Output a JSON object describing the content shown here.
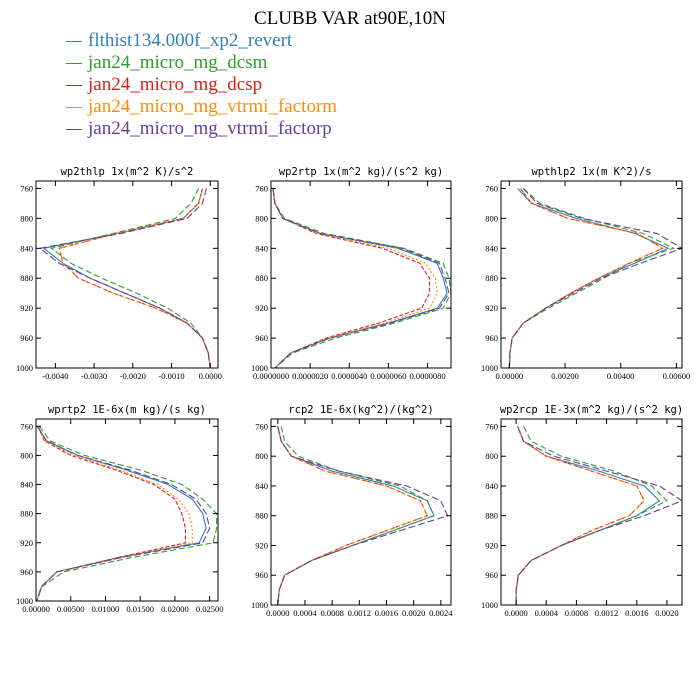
{
  "title": "CLUBB VAR at90E,10N",
  "legend": [
    {
      "name": "flthist134.000f_xp2_revert",
      "color": "#2f7fb8"
    },
    {
      "name": "jan24_micro_mg_dcsm",
      "color": "#2ca02c"
    },
    {
      "name": "jan24_micro_mg_dcsp",
      "color": "#e31a1c"
    },
    {
      "name": "jan24_micro_mg_vtrmi_factorm",
      "color": "#ff8c00"
    },
    {
      "name": "jan24_micro_mg_vtrmi_factorp",
      "color": "#6a3d9a"
    }
  ],
  "chart_data": [
    {
      "type": "line",
      "title": "wp2thlp  1x(m^2 K)/s^2",
      "ylim": [
        1000,
        750
      ],
      "yticks": [
        760,
        800,
        840,
        880,
        920,
        960,
        1000
      ],
      "xlim": [
        -0.0045,
        0.0002
      ],
      "xticks": [
        -0.004,
        -0.003,
        -0.002,
        -0.001,
        0.0
      ],
      "xtick_labels": [
        "-0.0040",
        "-0.0030",
        "-0.0020",
        "-0.0010",
        "0.0000"
      ],
      "y": [
        760,
        780,
        800,
        820,
        840,
        860,
        880,
        900,
        920,
        940,
        960,
        980,
        1000
      ],
      "series": [
        {
          "name": "flthist134.000f_xp2_revert",
          "values": [
            -0.0002,
            -0.0003,
            -0.0007,
            -0.0024,
            -0.0043,
            -0.0038,
            -0.0031,
            -0.0022,
            -0.0013,
            -0.0006,
            -0.0002,
            -5e-05,
            0.0
          ]
        },
        {
          "name": "jan24_micro_mg_dcsm",
          "values": [
            -0.0003,
            -0.0005,
            -0.0009,
            -0.0025,
            -0.0041,
            -0.0036,
            -0.0028,
            -0.0019,
            -0.0011,
            -0.0005,
            -0.0002,
            -5e-05,
            0.0
          ]
        },
        {
          "name": "jan24_micro_mg_dcsp",
          "values": [
            -0.0002,
            -0.0003,
            -0.0007,
            -0.0024,
            -0.0039,
            -0.0038,
            -0.0034,
            -0.0025,
            -0.0014,
            -0.0006,
            -0.0002,
            -5e-05,
            0.0
          ]
        },
        {
          "name": "jan24_micro_mg_vtrmi_factorm",
          "values": [
            -0.0002,
            -0.0003,
            -0.0007,
            -0.0024,
            -0.0039,
            -0.0038,
            -0.0034,
            -0.0025,
            -0.0014,
            -0.0006,
            -0.0002,
            -5e-05,
            0.0
          ]
        },
        {
          "name": "jan24_micro_mg_vtrmi_factorp",
          "values": [
            -0.0001,
            -0.0002,
            -0.0006,
            -0.0023,
            -0.0044,
            -0.0039,
            -0.0031,
            -0.0022,
            -0.0013,
            -0.0006,
            -0.0002,
            -5e-05,
            0.0
          ]
        }
      ]
    },
    {
      "type": "line",
      "title": "wp2rtp  1x(m^2 kg)/(s^2 kg)",
      "ylim": [
        1000,
        750
      ],
      "yticks": [
        760,
        800,
        840,
        880,
        920,
        960,
        1000
      ],
      "xlim": [
        0.0,
        9.2e-06
      ],
      "xticks": [
        0.0,
        2e-06,
        4e-06,
        6e-06,
        8e-06
      ],
      "xtick_labels": [
        "0.0000000",
        "0.0000020",
        "0.0000040",
        "0.0000060",
        "0.0000080"
      ],
      "y": [
        760,
        780,
        800,
        820,
        840,
        860,
        880,
        900,
        920,
        940,
        960,
        980,
        1000
      ],
      "series": [
        {
          "name": "flthist134.000f_xp2_revert",
          "values": [
            1e-07,
            2e-07,
            6e-07,
            2.5e-06,
            6.5e-06,
            8.5e-06,
            8.8e-06,
            9e-06,
            8.5e-06,
            6e-06,
            3e-06,
            1e-06,
            2e-07
          ]
        },
        {
          "name": "jan24_micro_mg_dcsm",
          "values": [
            1e-07,
            2e-07,
            7e-07,
            2.7e-06,
            6.8e-06,
            8.8e-06,
            9.1e-06,
            9.2e-06,
            8.8e-06,
            6.3e-06,
            3.3e-06,
            1.1e-06,
            2e-07
          ]
        },
        {
          "name": "jan24_micro_mg_dcsp",
          "values": [
            1e-07,
            2e-07,
            6e-07,
            2.3e-06,
            5.7e-06,
            7.6e-06,
            8.1e-06,
            8.1e-06,
            7.7e-06,
            5.5e-06,
            2.8e-06,
            1e-06,
            2e-07
          ]
        },
        {
          "name": "jan24_micro_mg_vtrmi_factorm",
          "values": [
            1e-07,
            2e-07,
            6e-07,
            2.4e-06,
            6e-06,
            7.9e-06,
            8.4e-06,
            8.5e-06,
            8.1e-06,
            5.8e-06,
            2.9e-06,
            1e-06,
            2e-07
          ]
        },
        {
          "name": "jan24_micro_mg_vtrmi_factorp",
          "values": [
            1e-07,
            2e-07,
            6e-07,
            2.5e-06,
            6.7e-06,
            8.6e-06,
            8.9e-06,
            9.1e-06,
            8.6e-06,
            6.1e-06,
            3e-06,
            1e-06,
            2e-07
          ]
        }
      ]
    },
    {
      "type": "line",
      "title": "wpthlp2  1x(m K^2)/s",
      "ylim": [
        1000,
        750
      ],
      "yticks": [
        760,
        800,
        840,
        880,
        920,
        960,
        1000
      ],
      "xlim": [
        -0.0003,
        0.0062
      ],
      "xticks": [
        0.0,
        0.002,
        0.004,
        0.006
      ],
      "xtick_labels": [
        "0.00000",
        "0.00200",
        "0.00400",
        "0.00600"
      ],
      "y": [
        760,
        780,
        800,
        820,
        840,
        860,
        880,
        900,
        920,
        940,
        960,
        980,
        1000
      ],
      "series": [
        {
          "name": "flthist134.000f_xp2_revert",
          "values": [
            0.0003,
            0.0008,
            0.0024,
            0.0045,
            0.0057,
            0.0045,
            0.0032,
            0.0022,
            0.0013,
            0.0005,
            0.0001,
            2e-05,
            0.0
          ]
        },
        {
          "name": "jan24_micro_mg_dcsm",
          "values": [
            0.0005,
            0.0011,
            0.0027,
            0.0048,
            0.0059,
            0.0043,
            0.0034,
            0.0024,
            0.0014,
            0.0005,
            0.0001,
            2e-05,
            0.0
          ]
        },
        {
          "name": "jan24_micro_mg_dcsp",
          "values": [
            0.0004,
            0.0008,
            0.0021,
            0.0046,
            0.0055,
            0.0043,
            0.0032,
            0.0022,
            0.0013,
            0.0005,
            0.0001,
            2e-05,
            0.0
          ]
        },
        {
          "name": "jan24_micro_mg_vtrmi_factorm",
          "values": [
            0.0004,
            0.0008,
            0.0021,
            0.0046,
            0.0055,
            0.0043,
            0.0032,
            0.0022,
            0.0013,
            0.0005,
            0.0001,
            2e-05,
            0.0
          ]
        },
        {
          "name": "jan24_micro_mg_vtrmi_factorp",
          "values": [
            0.0005,
            0.001,
            0.0026,
            0.0053,
            0.0062,
            0.0047,
            0.0033,
            0.0023,
            0.0013,
            0.0005,
            0.0001,
            2e-05,
            0.0
          ]
        }
      ]
    },
    {
      "type": "line",
      "title": "wprtp2  1E-6x(m kg)/(s kg)",
      "ylim": [
        1000,
        750
      ],
      "yticks": [
        760,
        800,
        840,
        880,
        920,
        960,
        1000
      ],
      "xlim": [
        0.0,
        0.0262
      ],
      "xticks": [
        0.0,
        0.005,
        0.01,
        0.015,
        0.02,
        0.025
      ],
      "xtick_labels": [
        "0.00000",
        "0.00500",
        "0.01000",
        "0.01500",
        "0.02000",
        "0.02500"
      ],
      "y": [
        760,
        780,
        800,
        820,
        840,
        860,
        880,
        900,
        920,
        940,
        960,
        980,
        1000
      ],
      "series": [
        {
          "name": "flthist134.000f_xp2_revert",
          "values": [
            0.0002,
            0.0015,
            0.006,
            0.013,
            0.019,
            0.0225,
            0.024,
            0.0245,
            0.0235,
            0.012,
            0.003,
            0.0008,
            0.0001
          ]
        },
        {
          "name": "jan24_micro_mg_dcsm",
          "values": [
            0.0005,
            0.002,
            0.007,
            0.015,
            0.021,
            0.024,
            0.026,
            0.026,
            0.0255,
            0.014,
            0.004,
            0.0009,
            0.0001
          ]
        },
        {
          "name": "jan24_micro_mg_dcsp",
          "values": [
            0.0003,
            0.0012,
            0.005,
            0.0115,
            0.017,
            0.02,
            0.021,
            0.0215,
            0.0215,
            0.012,
            0.003,
            0.0008,
            0.0001
          ]
        },
        {
          "name": "jan24_micro_mg_vtrmi_factorm",
          "values": [
            0.0003,
            0.0013,
            0.0055,
            0.012,
            0.0175,
            0.0205,
            0.022,
            0.0225,
            0.0225,
            0.0125,
            0.003,
            0.0008,
            0.0001
          ]
        },
        {
          "name": "jan24_micro_mg_vtrmi_factorp",
          "values": [
            0.0002,
            0.0015,
            0.006,
            0.0135,
            0.0195,
            0.023,
            0.0245,
            0.025,
            0.024,
            0.0125,
            0.003,
            0.0008,
            0.0001
          ]
        }
      ]
    },
    {
      "type": "line",
      "title": "rcp2  1E-6x(kg^2)/(kg^2)",
      "ylim": [
        1000,
        750
      ],
      "yticks": [
        760,
        800,
        840,
        880,
        920,
        960,
        1000
      ],
      "xlim": [
        -0.0001,
        0.00255
      ],
      "xticks": [
        0.0,
        0.0004,
        0.0008,
        0.0012,
        0.0016,
        0.002,
        0.0024
      ],
      "xtick_labels": [
        "0.0000",
        "0.0004",
        "0.0008",
        "0.0012",
        "0.0016",
        "0.0020",
        "0.0024"
      ],
      "y": [
        760,
        780,
        800,
        820,
        840,
        860,
        880,
        900,
        920,
        940,
        960,
        980,
        1000
      ],
      "series": [
        {
          "name": "flthist134.000f_xp2_revert",
          "values": [
            0.0,
            5e-05,
            0.0002,
            0.0008,
            0.0017,
            0.0022,
            0.0023,
            0.0017,
            0.0011,
            0.0005,
            0.0001,
            2e-05,
            0.0
          ]
        },
        {
          "name": "jan24_micro_mg_dcsm",
          "values": [
            5e-05,
            0.0001,
            0.0003,
            0.0009,
            0.0018,
            0.0022,
            0.0023,
            0.0017,
            0.0011,
            0.0005,
            0.0001,
            2e-05,
            0.0
          ]
        },
        {
          "name": "jan24_micro_mg_dcsp",
          "values": [
            0.0,
            5e-05,
            0.0002,
            0.0007,
            0.0016,
            0.0021,
            0.0022,
            0.0016,
            0.001,
            0.0005,
            0.0001,
            2e-05,
            0.0
          ]
        },
        {
          "name": "jan24_micro_mg_vtrmi_factorm",
          "values": [
            0.0,
            5e-05,
            0.0002,
            0.0007,
            0.0016,
            0.0021,
            0.0022,
            0.0016,
            0.001,
            0.0005,
            0.0001,
            2e-05,
            0.0
          ]
        },
        {
          "name": "jan24_micro_mg_vtrmi_factorp",
          "values": [
            0.0,
            5e-05,
            0.0002,
            0.0009,
            0.0019,
            0.0024,
            0.0025,
            0.0018,
            0.0011,
            0.0005,
            0.0001,
            2e-05,
            0.0
          ]
        }
      ]
    },
    {
      "type": "line",
      "title": "wp2rcp  1E-3x(m^2 kg)/(s^2 kg)",
      "ylim": [
        1000,
        750
      ],
      "yticks": [
        760,
        800,
        840,
        880,
        920,
        960,
        1000
      ],
      "xlim": [
        -0.0002,
        0.0022
      ],
      "xticks": [
        0.0,
        0.0004,
        0.0008,
        0.0012,
        0.0016,
        0.002
      ],
      "xtick_labels": [
        "0.0000",
        "0.0004",
        "0.0008",
        "0.0012",
        "0.0016",
        "0.0020"
      ],
      "y": [
        760,
        780,
        800,
        820,
        840,
        860,
        880,
        900,
        920,
        940,
        960,
        980,
        1000
      ],
      "series": [
        {
          "name": "flthist134.000f_xp2_revert",
          "values": [
            2e-05,
            0.0001,
            0.0004,
            0.0011,
            0.0017,
            0.0019,
            0.0016,
            0.0011,
            0.0006,
            0.0002,
            3e-05,
            0.0,
            0.0
          ]
        },
        {
          "name": "jan24_micro_mg_dcsm",
          "values": [
            0.0001,
            0.0002,
            0.0006,
            0.0013,
            0.0018,
            0.002,
            0.0016,
            0.0011,
            0.0006,
            0.0002,
            3e-05,
            0.0,
            0.0
          ]
        },
        {
          "name": "jan24_micro_mg_dcsp",
          "values": [
            2e-05,
            0.0001,
            0.0004,
            0.001,
            0.0016,
            0.0017,
            0.0015,
            0.001,
            0.0006,
            0.0002,
            3e-05,
            0.0,
            0.0
          ]
        },
        {
          "name": "jan24_micro_mg_vtrmi_factorm",
          "values": [
            2e-05,
            0.0001,
            0.0004,
            0.001,
            0.0016,
            0.0017,
            0.0015,
            0.001,
            0.0006,
            0.0002,
            3e-05,
            0.0,
            0.0
          ]
        },
        {
          "name": "jan24_micro_mg_vtrmi_factorp",
          "values": [
            2e-05,
            0.0001,
            0.0005,
            0.0012,
            0.0019,
            0.0022,
            0.0017,
            0.0011,
            0.0006,
            0.0002,
            3e-05,
            0.0,
            0.0
          ]
        }
      ]
    }
  ]
}
